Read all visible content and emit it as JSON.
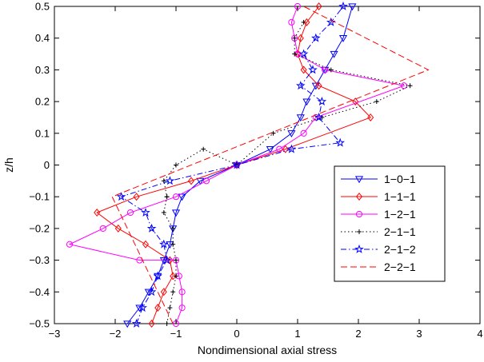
{
  "chart_data": {
    "type": "line",
    "title": "",
    "xlabel": "Nondimensional axial stress",
    "ylabel": "z/h",
    "xlim": [
      -3,
      4
    ],
    "ylim": [
      -0.5,
      0.5
    ],
    "xticks": [
      -3,
      -2,
      -1,
      0,
      1,
      2,
      3,
      4
    ],
    "xtick_labels": [
      "−3",
      "−2",
      "−1",
      "0",
      "1",
      "2",
      "3",
      "4"
    ],
    "yticks": [
      -0.5,
      -0.4,
      -0.3,
      -0.2,
      -0.1,
      0,
      0.1,
      0.2,
      0.3,
      0.4,
      0.5
    ],
    "ytick_labels": [
      "−0.5",
      "−0.4",
      "−0.3",
      "−0.2",
      "−0.1",
      "0",
      "0.1",
      "0.2",
      "0.3",
      "0.4",
      "0.5"
    ],
    "grid": false,
    "legend_position": "right",
    "series": [
      {
        "name": "1−0−1",
        "color": "#0000ff",
        "marker": "triangle-down",
        "dash": "",
        "x": [
          -1.8,
          -1.6,
          -1.45,
          -1.3,
          -1.2,
          -1.1,
          -1.05,
          -1.0,
          -0.9,
          -0.6,
          0.0,
          0.55,
          0.9,
          1.05,
          1.15,
          1.3,
          1.45,
          1.6,
          1.75,
          1.9
        ],
        "y": [
          -0.5,
          -0.45,
          -0.4,
          -0.35,
          -0.3,
          -0.25,
          -0.2,
          -0.15,
          -0.1,
          -0.05,
          0.0,
          0.05,
          0.1,
          0.15,
          0.2,
          0.25,
          0.3,
          0.35,
          0.4,
          0.5
        ]
      },
      {
        "name": "1−1−1",
        "color": "#ff0000",
        "marker": "diamond",
        "dash": "",
        "x": [
          -1.4,
          -1.3,
          -1.2,
          -1.05,
          -1.1,
          -1.5,
          -1.95,
          -2.3,
          -1.65,
          -0.75,
          0.0,
          0.8,
          2.2,
          1.95,
          1.35,
          1.1,
          1.0,
          1.05,
          1.15,
          1.35
        ],
        "y": [
          -0.5,
          -0.45,
          -0.4,
          -0.35,
          -0.3,
          -0.25,
          -0.2,
          -0.15,
          -0.1,
          -0.05,
          0.0,
          0.05,
          0.15,
          0.2,
          0.25,
          0.3,
          0.35,
          0.4,
          0.45,
          0.5
        ]
      },
      {
        "name": "1−2−1",
        "color": "#ff00ff",
        "marker": "circle",
        "dash": "",
        "x": [
          -1.0,
          -0.9,
          -0.9,
          -0.95,
          -1.0,
          -1.6,
          -2.75,
          -2.2,
          -1.75,
          -1.0,
          -0.5,
          0.0,
          0.7,
          1.1,
          1.3,
          2.75,
          1.45,
          1.0,
          0.95,
          0.9,
          1.0
        ],
        "y": [
          -0.5,
          -0.45,
          -0.4,
          -0.35,
          -0.3,
          -0.3,
          -0.25,
          -0.2,
          -0.15,
          -0.1,
          -0.05,
          0.0,
          0.05,
          0.1,
          0.15,
          0.25,
          0.3,
          0.35,
          0.4,
          0.45,
          0.5
        ]
      },
      {
        "name": "2−1−1",
        "color": "#000000",
        "marker": "plus",
        "dash": "1.5 3",
        "x": [
          -1.15,
          -1.1,
          -1.05,
          -1.0,
          -1.0,
          -1.05,
          -1.05,
          -1.2,
          -1.15,
          -1.15,
          -1.2,
          -1.0,
          -0.55,
          0.0,
          0.6,
          1.4,
          2.3,
          2.85,
          1.55,
          0.95,
          0.95,
          1.1
        ],
        "y": [
          -0.5,
          -0.45,
          -0.4,
          -0.35,
          -0.3,
          -0.25,
          -0.2,
          -0.15,
          -0.1,
          -0.1,
          -0.05,
          0.0,
          0.05,
          0.0,
          0.1,
          0.15,
          0.2,
          0.25,
          0.3,
          0.35,
          0.4,
          0.45
        ]
      },
      {
        "name": "2−1−2",
        "color": "#0000ff",
        "marker": "star",
        "dash": "7 3 1.5 3",
        "x": [
          -1.65,
          -1.55,
          -1.4,
          -1.3,
          -1.15,
          -1.2,
          -1.4,
          -1.5,
          -1.9,
          -1.1,
          0.0,
          0.9,
          1.7,
          1.35,
          1.4,
          1.05,
          1.25,
          1.1,
          1.3,
          1.55,
          1.75
        ],
        "y": [
          -0.5,
          -0.45,
          -0.4,
          -0.35,
          -0.3,
          -0.25,
          -0.2,
          -0.15,
          -0.1,
          -0.05,
          0.0,
          0.05,
          0.07,
          0.15,
          0.2,
          0.25,
          0.3,
          0.35,
          0.4,
          0.45,
          0.5
        ]
      },
      {
        "name": "2−2−1",
        "color": "#ff0000",
        "marker": "none",
        "dash": "8 4",
        "x": [
          -1.05,
          -2.05,
          3.15,
          1.1
        ],
        "y": [
          -0.5,
          -0.1,
          0.3,
          0.5
        ]
      }
    ]
  }
}
